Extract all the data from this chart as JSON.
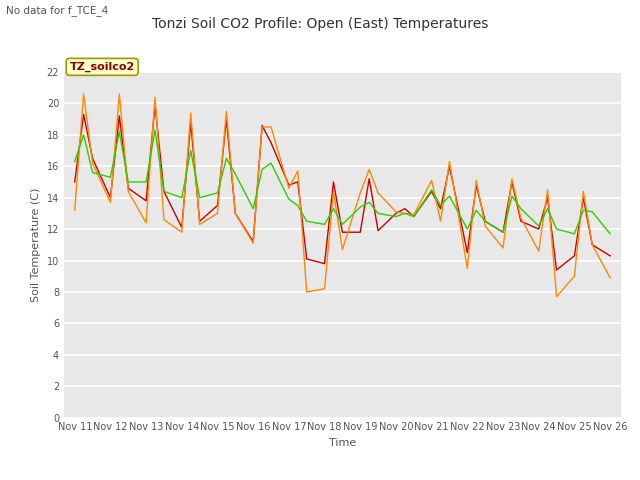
{
  "title": "Tonzi Soil CO2 Profile: Open (East) Temperatures",
  "no_data_label": "No data for f_TCE_4",
  "ylabel": "Soil Temperature (C)",
  "xlabel": "Time",
  "inner_label": "TZ_soilco2",
  "ylim": [
    0,
    22
  ],
  "fig_bg": "#ffffff",
  "plot_bg": "#e8e8e8",
  "series": {
    "neg2cm": {
      "color": "#cc0000",
      "linewidth": 1.0
    },
    "neg4cm": {
      "color": "#ff8800",
      "linewidth": 1.0
    },
    "neg8cm": {
      "color": "#33cc00",
      "linewidth": 1.0
    }
  },
  "x_tick_labels": [
    "Nov 11",
    "Nov 12",
    "Nov 13",
    "Nov 14",
    "Nov 15",
    "Nov 16",
    "Nov 17",
    "Nov 18",
    "Nov 19",
    "Nov 20",
    "Nov 21",
    "Nov 22",
    "Nov 23",
    "Nov 24",
    "Nov 25",
    "Nov 26"
  ],
  "neg2cm_x": [
    0,
    0.25,
    0.5,
    1.0,
    1.25,
    1.5,
    2.0,
    2.25,
    2.5,
    3.0,
    3.25,
    3.5,
    4.0,
    4.25,
    4.5,
    5.0,
    5.25,
    5.5,
    6.0,
    6.25,
    6.5,
    7.0,
    7.25,
    7.5,
    8.0,
    8.25,
    8.5,
    9.0,
    9.25,
    9.5,
    10.0,
    10.25,
    10.5,
    11.0,
    11.25,
    11.5,
    12.0,
    12.25,
    12.5,
    13.0,
    13.25,
    13.5,
    14.0,
    14.25,
    14.5,
    15.0
  ],
  "neg2cm_y": [
    15.0,
    19.3,
    16.5,
    14.0,
    19.2,
    14.6,
    13.8,
    19.9,
    14.4,
    12.1,
    18.8,
    12.5,
    13.5,
    19.0,
    13.0,
    11.2,
    18.6,
    17.5,
    14.8,
    15.0,
    10.1,
    9.8,
    15.0,
    11.8,
    11.8,
    15.2,
    11.9,
    13.0,
    13.3,
    12.8,
    14.4,
    13.3,
    16.0,
    10.5,
    14.8,
    12.5,
    11.8,
    15.0,
    12.5,
    12.0,
    14.0,
    9.4,
    10.3,
    14.0,
    11.0,
    10.3
  ],
  "neg4cm_x": [
    0,
    0.25,
    0.5,
    1.0,
    1.25,
    1.5,
    2.0,
    2.25,
    2.5,
    3.0,
    3.25,
    3.5,
    4.0,
    4.25,
    4.5,
    5.0,
    5.25,
    5.5,
    6.0,
    6.25,
    6.5,
    7.0,
    7.25,
    7.5,
    8.0,
    8.25,
    8.5,
    9.0,
    9.25,
    9.5,
    10.0,
    10.25,
    10.5,
    11.0,
    11.25,
    11.5,
    12.0,
    12.25,
    12.5,
    13.0,
    13.25,
    13.5,
    14.0,
    14.25,
    14.5,
    15.0
  ],
  "neg4cm_y": [
    13.2,
    20.6,
    16.2,
    13.7,
    20.6,
    14.4,
    12.4,
    20.4,
    12.6,
    11.8,
    19.4,
    12.3,
    13.0,
    19.5,
    13.0,
    11.1,
    18.5,
    18.5,
    14.6,
    15.7,
    8.0,
    8.2,
    14.4,
    10.7,
    14.3,
    15.8,
    14.3,
    13.1,
    13.0,
    12.9,
    15.1,
    12.5,
    16.3,
    9.5,
    15.1,
    12.2,
    10.8,
    15.2,
    12.7,
    10.6,
    14.5,
    7.7,
    9.0,
    14.4,
    11.0,
    8.9
  ],
  "neg8cm_x": [
    0,
    0.25,
    0.5,
    1.0,
    1.25,
    1.5,
    2.0,
    2.25,
    2.5,
    3.0,
    3.25,
    3.5,
    4.0,
    4.25,
    4.5,
    5.0,
    5.25,
    5.5,
    6.0,
    6.25,
    6.5,
    7.0,
    7.25,
    7.5,
    8.0,
    8.25,
    8.5,
    9.0,
    9.25,
    9.5,
    10.0,
    10.25,
    10.5,
    11.0,
    11.25,
    11.5,
    12.0,
    12.25,
    12.5,
    13.0,
    13.25,
    13.5,
    14.0,
    14.25,
    14.5,
    15.0
  ],
  "neg8cm_y": [
    16.3,
    18.0,
    15.6,
    15.3,
    18.2,
    15.0,
    15.0,
    18.3,
    14.4,
    14.0,
    17.0,
    14.0,
    14.3,
    16.5,
    15.5,
    13.3,
    15.8,
    16.2,
    13.9,
    13.5,
    12.5,
    12.3,
    13.3,
    12.3,
    13.4,
    13.7,
    13.0,
    12.8,
    13.0,
    12.8,
    14.5,
    13.5,
    14.1,
    12.0,
    13.2,
    12.5,
    11.8,
    14.1,
    13.3,
    12.2,
    13.3,
    12.0,
    11.7,
    13.2,
    13.1,
    11.7
  ]
}
